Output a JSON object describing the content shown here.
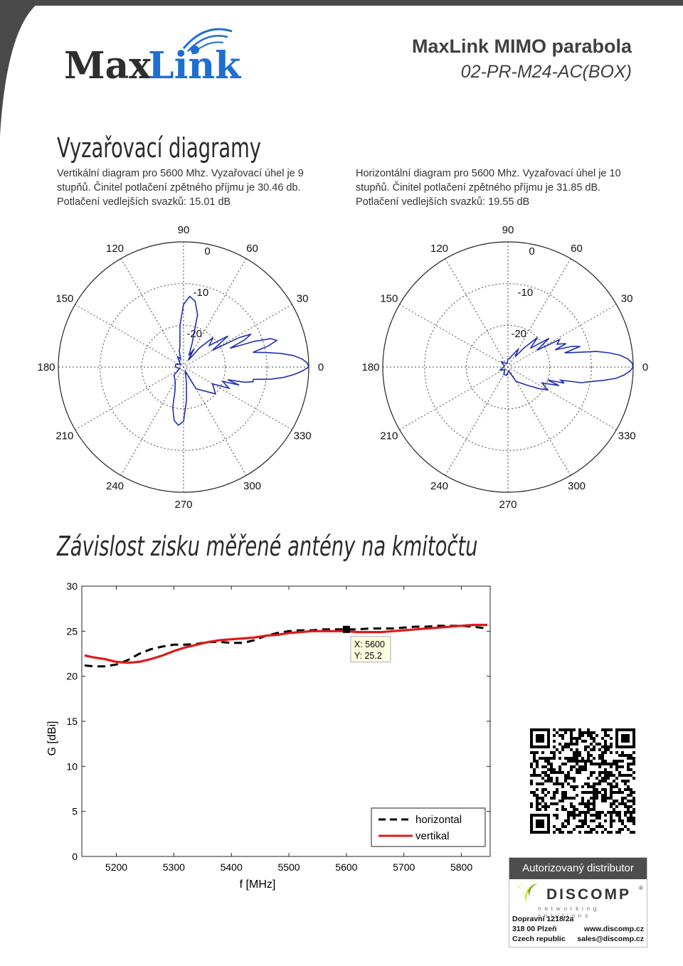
{
  "header": {
    "brand": "MaxLink",
    "product_name": "MaxLink MIMO parabola",
    "product_model": "02-PR-M24-AC(BOX)"
  },
  "radiation_section": {
    "title": "Vyzařovací diagramy",
    "vertical_desc": "Vertikální diagram pro 5600 Mhz. Vyzařovací úhel je 9 stupňů. Činitel potlačení zpětného příjmu je 30.46 db. Potlačení vedlejších svazků: 15.01 dB",
    "horizontal_desc": "Horizontální diagram pro 5600 Mhz. Vyzařovací úhel je 10 stupňů. Činitel potlačení zpětného příjmu je 31.85 dB. Potlačení vedlejších svazků: 19.55 dB"
  },
  "gain_section": {
    "title": "Závislost zisku měřené antény na kmitočtu"
  },
  "chart_data": [
    {
      "type": "polar",
      "id": "vertical",
      "angle_labels": [
        "0",
        "30",
        "60",
        "90",
        "120",
        "150",
        "180",
        "210",
        "240",
        "270",
        "300",
        "330"
      ],
      "radial_labels": [
        "0",
        "-10",
        "-20"
      ],
      "radial_range_db": [
        -30,
        0
      ],
      "series": [
        {
          "color": "#1f2fb0",
          "angles_deg": [
            0,
            2,
            4,
            6,
            8,
            10,
            12,
            14,
            16,
            18,
            20,
            22,
            24,
            26,
            28,
            30,
            35,
            40,
            45,
            50,
            55,
            60,
            65,
            70,
            75,
            80,
            85,
            90,
            95,
            100,
            105,
            110,
            120,
            140,
            160,
            180,
            200,
            220,
            240,
            250,
            255,
            260,
            265,
            270,
            275,
            280,
            285,
            290,
            300,
            320,
            330,
            335,
            340,
            342,
            344,
            346,
            348,
            350,
            352,
            354,
            356,
            358
          ],
          "gain_db": [
            0,
            -0.4,
            -1.6,
            -3.6,
            -6.5,
            -10,
            -13,
            -9,
            -6.8,
            -8,
            -12,
            -18,
            -14,
            -12,
            -15,
            -22,
            -17,
            -22,
            -20,
            -24,
            -28,
            -25,
            -27,
            -24,
            -17,
            -14,
            -13,
            -15,
            -20,
            -25,
            -26,
            -28,
            -27,
            -29,
            -28,
            -28,
            -29,
            -27,
            -26,
            -24,
            -20,
            -17,
            -16,
            -17,
            -22,
            -26,
            -28,
            -29,
            -24,
            -20,
            -22,
            -18,
            -20,
            -16,
            -19,
            -15,
            -13,
            -13,
            -9,
            -6,
            -3.6,
            -1.6
          ]
        }
      ]
    },
    {
      "type": "polar",
      "id": "horizontal",
      "angle_labels": [
        "0",
        "30",
        "60",
        "90",
        "120",
        "150",
        "180",
        "210",
        "240",
        "270",
        "300",
        "330"
      ],
      "radial_labels": [
        "0",
        "-10",
        "-20"
      ],
      "radial_range_db": [
        -30,
        0
      ],
      "series": [
        {
          "color": "#1f2fb0",
          "angles_deg": [
            0,
            2,
            4,
            6,
            8,
            10,
            12,
            14,
            16,
            18,
            20,
            22,
            25,
            28,
            30,
            35,
            40,
            45,
            50,
            55,
            60,
            70,
            80,
            90,
            100,
            120,
            140,
            160,
            180,
            200,
            220,
            240,
            260,
            280,
            300,
            315,
            325,
            330,
            335,
            340,
            342,
            344,
            346,
            348,
            350,
            352,
            354,
            356,
            358
          ],
          "gain_db": [
            0,
            -0.3,
            -1.3,
            -3,
            -5.5,
            -8.5,
            -13,
            -16,
            -12,
            -14,
            -18,
            -15,
            -17,
            -16,
            -22,
            -18,
            -23,
            -20,
            -24,
            -27,
            -25,
            -27,
            -28,
            -28,
            -29,
            -29,
            -28,
            -29,
            -29,
            -28,
            -29,
            -28,
            -28,
            -29,
            -26,
            -24,
            -21,
            -19,
            -21,
            -17,
            -20,
            -16,
            -17,
            -12,
            -10,
            -7,
            -4,
            -2.2,
            -0.8
          ]
        }
      ]
    },
    {
      "type": "line",
      "id": "gain-vs-frequency",
      "xlabel": "f [MHz]",
      "ylabel": "G [dBi]",
      "xlim": [
        5140,
        5850
      ],
      "ylim": [
        0,
        30
      ],
      "xticks": [
        5200,
        5300,
        5400,
        5500,
        5600,
        5700,
        5800
      ],
      "yticks": [
        0,
        5,
        10,
        15,
        20,
        25,
        30
      ],
      "legend_position": "bottom-right",
      "datatip": {
        "x": 5600,
        "y": 25.2,
        "x_text": "X: 5600",
        "y_text": "Y: 25.2"
      },
      "series": [
        {
          "name": "horizontal",
          "color": "#000000",
          "dash": true,
          "x": [
            5145,
            5160,
            5180,
            5200,
            5220,
            5240,
            5260,
            5280,
            5300,
            5320,
            5340,
            5360,
            5380,
            5400,
            5420,
            5440,
            5460,
            5480,
            5500,
            5520,
            5540,
            5560,
            5580,
            5600,
            5620,
            5640,
            5660,
            5680,
            5700,
            5720,
            5740,
            5760,
            5780,
            5800,
            5820,
            5845
          ],
          "y": [
            21.2,
            21.1,
            21.1,
            21.3,
            21.8,
            22.5,
            23.0,
            23.3,
            23.5,
            23.5,
            23.6,
            23.8,
            23.8,
            23.7,
            23.7,
            24.0,
            24.5,
            24.8,
            25.0,
            25.1,
            25.1,
            25.2,
            25.2,
            25.2,
            25.2,
            25.3,
            25.3,
            25.3,
            25.4,
            25.5,
            25.5,
            25.6,
            25.6,
            25.6,
            25.5,
            25.3
          ]
        },
        {
          "name": "vertikal",
          "color": "#e01818",
          "dash": false,
          "x": [
            5145,
            5160,
            5180,
            5200,
            5220,
            5240,
            5260,
            5280,
            5300,
            5320,
            5340,
            5360,
            5380,
            5400,
            5420,
            5440,
            5460,
            5480,
            5500,
            5520,
            5540,
            5560,
            5580,
            5600,
            5620,
            5640,
            5660,
            5680,
            5700,
            5720,
            5740,
            5760,
            5780,
            5800,
            5820,
            5845
          ],
          "y": [
            22.3,
            22.1,
            21.9,
            21.6,
            21.5,
            21.6,
            21.9,
            22.3,
            22.8,
            23.2,
            23.5,
            23.8,
            24.0,
            24.1,
            24.2,
            24.3,
            24.5,
            24.6,
            24.8,
            24.9,
            25.0,
            25.0,
            25.0,
            25.0,
            24.9,
            24.9,
            24.9,
            25.0,
            25.1,
            25.2,
            25.3,
            25.4,
            25.5,
            25.6,
            25.7,
            25.7
          ]
        }
      ]
    }
  ],
  "distributor": {
    "heading": "Autorizovaný distributor",
    "company": "DISCOMP",
    "tagline": "networking solutions",
    "street": "Dopravní 1218/2a",
    "city": "318 00 Plzeň",
    "country": "Czech republic",
    "web": "www.discomp.cz",
    "email": "sales@discomp.cz"
  },
  "colors": {
    "accent_blue": "#1f6fd0",
    "logo_dark": "#2e2e2e",
    "discomp_green": "#c6d400"
  }
}
